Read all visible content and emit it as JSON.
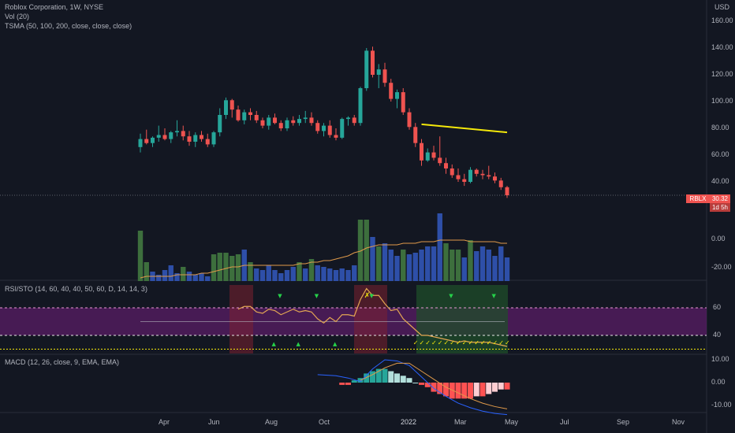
{
  "header": {
    "title": "Roblox Corporation, 1W, NYSE",
    "vol": "Vol (20)",
    "tsma": "TSMA (50, 100, 200, close, close, close)",
    "currency": "USD"
  },
  "price_tag": {
    "symbol": "RBLX",
    "price": "30.32",
    "countdown": "1d 5h"
  },
  "rsi_label": "RSI/STO (14, 60, 40, 40, 50, 60, D, 14, 14, 3)",
  "macd_label": "MACD (12, 26, close, 9, EMA, EMA)",
  "colors": {
    "bg": "#131722",
    "up": "#26a69a",
    "down": "#ef5350",
    "vol_green": "#3d6f3d",
    "vol_blue": "#2e4fa8",
    "ma_yellow": "#f5e90a",
    "orange": "#e09a4a",
    "purple_band": "#5a1d66",
    "macd_blue": "#2962ff"
  },
  "chart_data": [
    {
      "type": "candlestick",
      "ylim": [
        0,
        160
      ],
      "y_ticks": [
        "160.00",
        "140.00",
        "120.00",
        "100.00",
        "80.00",
        "60.00",
        "40.00"
      ],
      "x_ticks": [
        "Apr",
        "Jun",
        "Aug",
        "Oct",
        "2022",
        "Mar",
        "May",
        "Jul",
        "Sep",
        "Nov"
      ],
      "ohlc": [
        [
          66,
          76,
          62,
          72
        ],
        [
          72,
          79,
          68,
          69
        ],
        [
          69,
          74,
          66,
          73
        ],
        [
          73,
          82,
          70,
          75
        ],
        [
          75,
          80,
          71,
          72
        ],
        [
          72,
          78,
          69,
          77
        ],
        [
          77,
          86,
          74,
          78
        ],
        [
          78,
          82,
          71,
          74
        ],
        [
          74,
          78,
          67,
          70
        ],
        [
          70,
          77,
          66,
          75
        ],
        [
          75,
          78,
          70,
          72
        ],
        [
          72,
          76,
          66,
          68
        ],
        [
          68,
          78,
          66,
          77
        ],
        [
          77,
          95,
          74,
          90
        ],
        [
          90,
          103,
          87,
          101
        ],
        [
          101,
          102,
          88,
          94
        ],
        [
          94,
          97,
          85,
          86
        ],
        [
          86,
          94,
          83,
          92
        ],
        [
          92,
          95,
          86,
          90
        ],
        [
          90,
          93,
          84,
          86
        ],
        [
          86,
          88,
          80,
          82
        ],
        [
          82,
          90,
          79,
          88
        ],
        [
          88,
          91,
          83,
          84
        ],
        [
          84,
          86,
          78,
          80
        ],
        [
          80,
          88,
          78,
          86
        ],
        [
          86,
          89,
          82,
          84
        ],
        [
          84,
          90,
          82,
          87
        ],
        [
          87,
          93,
          84,
          88
        ],
        [
          88,
          92,
          82,
          84
        ],
        [
          84,
          86,
          76,
          78
        ],
        [
          78,
          84,
          74,
          82
        ],
        [
          82,
          86,
          73,
          75
        ],
        [
          75,
          80,
          71,
          73
        ],
        [
          73,
          88,
          72,
          87
        ],
        [
          87,
          89,
          82,
          88
        ],
        [
          88,
          90,
          82,
          84
        ],
        [
          84,
          111,
          82,
          110
        ],
        [
          110,
          140,
          108,
          138
        ],
        [
          138,
          141,
          118,
          120
        ],
        [
          120,
          128,
          110,
          124
        ],
        [
          124,
          129,
          111,
          114
        ],
        [
          114,
          117,
          100,
          102
        ],
        [
          102,
          109,
          95,
          107
        ],
        [
          107,
          110,
          90,
          92
        ],
        [
          92,
          95,
          79,
          81
        ],
        [
          81,
          84,
          66,
          69
        ],
        [
          69,
          72,
          52,
          56
        ],
        [
          56,
          65,
          55,
          62
        ],
        [
          62,
          67,
          56,
          58
        ],
        [
          58,
          74,
          52,
          54
        ],
        [
          54,
          58,
          46,
          50
        ],
        [
          50,
          53,
          43,
          45
        ],
        [
          45,
          50,
          40,
          42
        ],
        [
          42,
          46,
          37,
          40
        ],
        [
          40,
          51,
          39,
          49
        ],
        [
          49,
          50,
          44,
          46
        ],
        [
          46,
          49,
          42,
          45
        ],
        [
          45,
          52,
          42,
          44
        ],
        [
          44,
          47,
          39,
          41
        ],
        [
          41,
          43,
          34,
          36
        ],
        [
          36,
          37,
          28,
          30
        ]
      ],
      "series": [
        {
          "name": "TSMA",
          "points": [
            [
              46,
              83
            ],
            [
              60,
              77
            ]
          ]
        }
      ]
    },
    {
      "type": "bar",
      "ylim": [
        -30,
        20
      ],
      "y_ticks": [
        "0.00",
        "-20.00"
      ],
      "values": [
        [
          32,
          "g"
        ],
        [
          12,
          "g"
        ],
        [
          6,
          "b"
        ],
        [
          4,
          "b"
        ],
        [
          7,
          "b"
        ],
        [
          10,
          "b"
        ],
        [
          5,
          "b"
        ],
        [
          9,
          "g"
        ],
        [
          6,
          "b"
        ],
        [
          4,
          "b"
        ],
        [
          5,
          "b"
        ],
        [
          3,
          "b"
        ],
        [
          17,
          "g"
        ],
        [
          18,
          "g"
        ],
        [
          18,
          "g"
        ],
        [
          16,
          "g"
        ],
        [
          17,
          "g"
        ],
        [
          20,
          "b"
        ],
        [
          12,
          "g"
        ],
        [
          8,
          "b"
        ],
        [
          7,
          "b"
        ],
        [
          10,
          "b"
        ],
        [
          7,
          "b"
        ],
        [
          5,
          "b"
        ],
        [
          7,
          "b"
        ],
        [
          9,
          "b"
        ],
        [
          12,
          "g"
        ],
        [
          8,
          "b"
        ],
        [
          14,
          "g"
        ],
        [
          10,
          "b"
        ],
        [
          9,
          "b"
        ],
        [
          8,
          "b"
        ],
        [
          7,
          "b"
        ],
        [
          8,
          "b"
        ],
        [
          7,
          "b"
        ],
        [
          10,
          "b"
        ],
        [
          39,
          "g"
        ],
        [
          39,
          "g"
        ],
        [
          28,
          "b"
        ],
        [
          22,
          "g"
        ],
        [
          24,
          "b"
        ],
        [
          20,
          "b"
        ],
        [
          16,
          "b"
        ],
        [
          20,
          "g"
        ],
        [
          17,
          "b"
        ],
        [
          18,
          "b"
        ],
        [
          20,
          "b"
        ],
        [
          22,
          "b"
        ],
        [
          22,
          "b"
        ],
        [
          43,
          "b"
        ],
        [
          24,
          "g"
        ],
        [
          20,
          "g"
        ],
        [
          20,
          "g"
        ],
        [
          15,
          "b"
        ],
        [
          26,
          "g"
        ],
        [
          19,
          "b"
        ],
        [
          22,
          "b"
        ],
        [
          20,
          "b"
        ],
        [
          16,
          "b"
        ],
        [
          22,
          "b"
        ],
        [
          15,
          "b"
        ]
      ],
      "series": [
        {
          "name": "MA",
          "points": [
            2,
            3,
            3,
            3,
            3,
            3,
            4,
            4,
            4,
            4,
            5,
            5,
            6,
            7,
            8,
            9,
            9,
            10,
            10,
            10,
            10,
            10,
            10,
            10,
            10,
            10,
            11,
            11,
            12,
            12,
            13,
            13,
            14,
            15,
            16,
            18,
            19,
            21,
            22,
            23,
            23,
            23,
            23,
            24,
            24,
            24,
            25,
            25,
            25,
            26,
            26,
            26,
            26,
            26,
            25,
            25,
            25,
            25,
            25,
            24,
            24
          ]
        }
      ]
    },
    {
      "type": "line",
      "ylim": [
        25,
        85
      ],
      "y_ticks": [
        "60",
        "40"
      ],
      "series": [
        {
          "name": "RSI",
          "points": [
            [
              16,
              59
            ],
            [
              17,
              61
            ],
            [
              18,
              61
            ],
            [
              19,
              57
            ],
            [
              20,
              56
            ],
            [
              21,
              59
            ],
            [
              22,
              58
            ],
            [
              23,
              55
            ],
            [
              24,
              57
            ],
            [
              25,
              59
            ],
            [
              26,
              57
            ],
            [
              27,
              58
            ],
            [
              28,
              57
            ],
            [
              29,
              52
            ],
            [
              30,
              49
            ],
            [
              31,
              53
            ],
            [
              32,
              50
            ],
            [
              33,
              55
            ],
            [
              34,
              55
            ],
            [
              35,
              54
            ],
            [
              36,
              66
            ],
            [
              37,
              74
            ],
            [
              38,
              69
            ],
            [
              39,
              69
            ],
            [
              40,
              63
            ],
            [
              41,
              58
            ],
            [
              42,
              59
            ],
            [
              43,
              52
            ],
            [
              44,
              48
            ],
            [
              45,
              44
            ],
            [
              46,
              40
            ],
            [
              47,
              40
            ],
            [
              48,
              39
            ],
            [
              49,
              38
            ],
            [
              50,
              37
            ],
            [
              51,
              36
            ],
            [
              52,
              35
            ],
            [
              53,
              36
            ],
            [
              54,
              35
            ],
            [
              55,
              35
            ],
            [
              56,
              35
            ],
            [
              57,
              35
            ],
            [
              58,
              34
            ],
            [
              59,
              33
            ],
            [
              60,
              32
            ]
          ]
        }
      ],
      "bands": {
        "upper": 60,
        "lower": 40,
        "mid": 50,
        "bottom": 30
      }
    },
    {
      "type": "bar",
      "ylim": [
        -15,
        12
      ],
      "y_ticks": [
        "10.00",
        "0.00",
        "-10.00"
      ],
      "values": [
        -1,
        -1,
        1,
        2,
        4,
        5,
        6,
        6,
        5,
        4,
        3,
        2,
        0,
        -1,
        -2,
        -4,
        -5,
        -6,
        -7,
        -7,
        -7,
        -7,
        -6,
        -6,
        -5,
        -4,
        -3,
        -3
      ],
      "series": [
        {
          "name": "MACD",
          "points": [
            [
              29,
              3.5
            ],
            [
              32,
              3.0
            ],
            [
              34,
              2.0
            ],
            [
              36,
              0.5
            ],
            [
              38,
              6
            ],
            [
              40,
              10
            ],
            [
              42,
              9.5
            ],
            [
              44,
              7.5
            ],
            [
              46,
              2.5
            ],
            [
              48,
              -2.5
            ],
            [
              50,
              -6
            ],
            [
              52,
              -9
            ],
            [
              54,
              -11
            ],
            [
              56,
              -12.5
            ],
            [
              58,
              -13.5
            ],
            [
              60,
              -14
            ]
          ]
        },
        {
          "name": "Signal",
          "points": [
            [
              36,
              1.0
            ],
            [
              38,
              3.5
            ],
            [
              40,
              6.5
            ],
            [
              42,
              8.5
            ],
            [
              44,
              8.5
            ],
            [
              46,
              5.0
            ],
            [
              48,
              1.5
            ],
            [
              50,
              -2
            ],
            [
              52,
              -4.5
            ],
            [
              54,
              -7
            ],
            [
              56,
              -9
            ],
            [
              58,
              -10.5
            ],
            [
              60,
              -11.5
            ]
          ]
        }
      ]
    }
  ]
}
